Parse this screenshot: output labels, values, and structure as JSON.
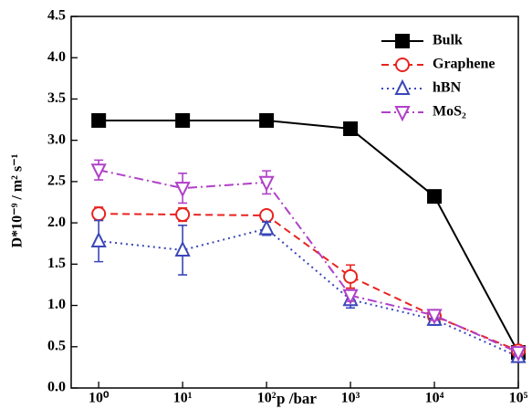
{
  "chart_data": {
    "type": "line",
    "x_label": "p /bar",
    "y_label": "D*10⁻⁹ / m² s⁻¹",
    "x": [
      1,
      10,
      100,
      1000,
      10000,
      100000
    ],
    "xscale": "log",
    "xlim": [
      0.47,
      100000
    ],
    "xticks": [
      {
        "value": 1,
        "label": "10⁰"
      },
      {
        "value": 10,
        "label": "10¹"
      },
      {
        "value": 100,
        "label": "10²"
      },
      {
        "value": 1000,
        "label": "10³"
      },
      {
        "value": 10000,
        "label": "10⁴"
      },
      {
        "value": 100000,
        "label": "10⁵"
      }
    ],
    "ylim": [
      0,
      4.5
    ],
    "yticks": [
      {
        "value": 0,
        "label": "0.0"
      },
      0.5,
      {
        "value": 1,
        "label": "1.0"
      },
      1.5,
      {
        "value": 2,
        "label": "2.0"
      },
      2.5,
      {
        "value": 3,
        "label": "3.0"
      },
      3.5,
      {
        "value": 4,
        "label": "4.0"
      },
      4.5
    ],
    "legend": "upper right",
    "series": [
      {
        "name": "Bulk",
        "color": "#000000",
        "dash": "solid",
        "marker": "square",
        "filled": true,
        "values": [
          3.24,
          3.24,
          3.24,
          3.14,
          2.32,
          0.43
        ]
      },
      {
        "name": "Graphene",
        "color": "#e8231f",
        "dash": "dashed",
        "marker": "circle",
        "filled": false,
        "values": [
          2.11,
          2.1,
          2.09,
          1.35,
          0.87,
          0.45
        ],
        "errors": [
          0.08,
          0.08,
          0.06,
          0.14,
          0.06,
          0.04
        ]
      },
      {
        "name": "hBN",
        "color": "#3a47b8",
        "dash": "dotted",
        "marker": "triangle-up",
        "filled": false,
        "values": [
          1.78,
          1.67,
          1.93,
          1.07,
          0.83,
          0.38
        ],
        "errors": [
          0.25,
          0.3,
          0.08,
          0.1,
          0.07,
          0.04
        ]
      },
      {
        "name": "MoS₂",
        "color": "#b040c8",
        "dash": "dashdot",
        "marker": "triangle-down",
        "filled": false,
        "values": [
          2.64,
          2.42,
          2.49,
          1.12,
          0.88,
          0.43
        ],
        "errors": [
          0.12,
          0.18,
          0.14,
          0.07,
          0.06,
          0.04
        ]
      }
    ]
  }
}
